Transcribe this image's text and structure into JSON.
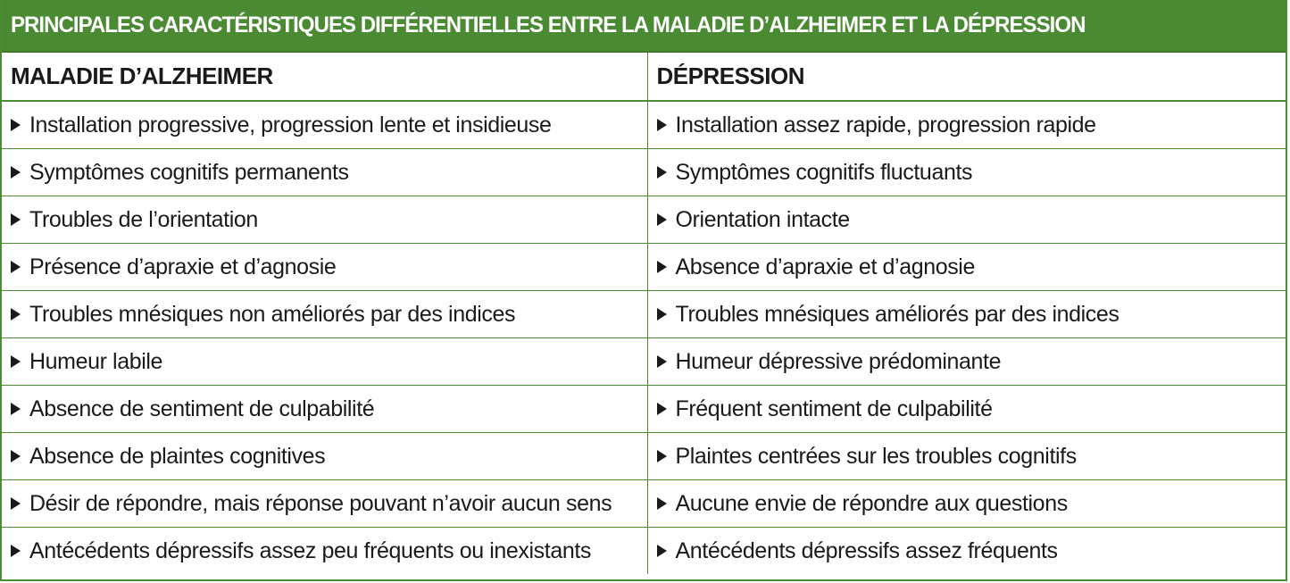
{
  "title": "PRINCIPALES CARACTÉRISTIQUES DIFFÉRENTIELLES ENTRE LA MALADIE D’ALZHEIMER ET LA DÉPRESSION",
  "colors": {
    "accent": "#4a8a32",
    "text": "#1a1a1a",
    "background": "#ffffff"
  },
  "bullet_icon": "triangle-right-icon",
  "table": {
    "headers": [
      "MALADIE D’ALZHEIMER",
      "DÉPRESSION"
    ],
    "rows": [
      [
        "Installation progressive, progression lente et insidieuse",
        "Installation assez rapide, progression rapide"
      ],
      [
        "Symptômes cognitifs permanents",
        "Symptômes cognitifs fluctuants"
      ],
      [
        "Troubles de l’orientation",
        "Orientation intacte"
      ],
      [
        "Présence d’apraxie et d’agnosie",
        "Absence d’apraxie et d’agnosie"
      ],
      [
        "Troubles mnésiques non améliorés par des indices",
        "Troubles mnésiques améliorés par des indices"
      ],
      [
        "Humeur labile",
        "Humeur dépressive prédominante"
      ],
      [
        "Absence de sentiment de culpabilité",
        "Fréquent sentiment de culpabilité"
      ],
      [
        "Absence de plaintes cognitives",
        "Plaintes centrées sur les troubles cognitifs"
      ],
      [
        "Désir de répondre, mais réponse pouvant n’avoir aucun sens",
        "Aucune envie de répondre aux questions"
      ],
      [
        "Antécédents dépressifs assez peu fréquents ou inexistants",
        "Antécédents dépressifs assez fréquents"
      ]
    ]
  }
}
